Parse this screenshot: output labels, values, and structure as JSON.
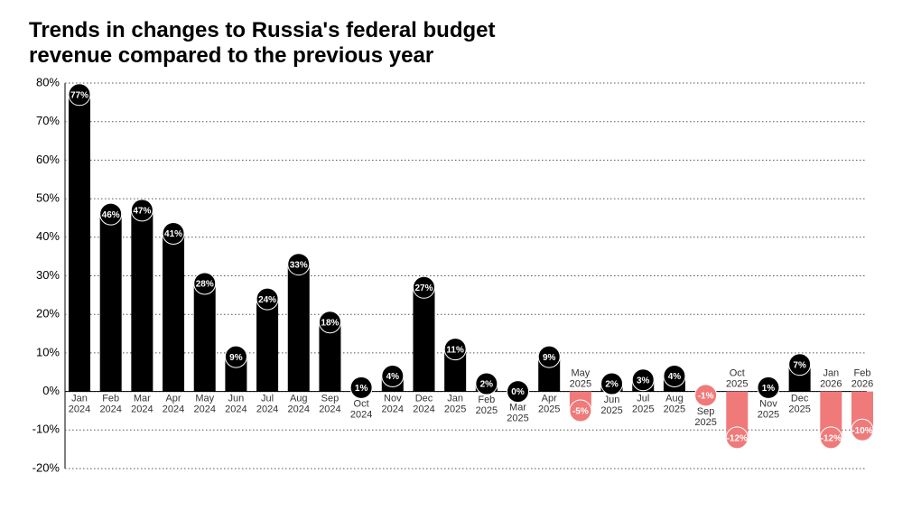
{
  "chart_data": {
    "type": "bar",
    "title": "Trends in changes to Russia's federal budget revenue compared to the previous year",
    "categories": [
      "Jan 2024",
      "Feb 2024",
      "Mar 2024",
      "Apr 2024",
      "May 2024",
      "Jun 2024",
      "Jul 2024",
      "Aug 2024",
      "Sep 2024",
      "Oct 2024",
      "Nov 2024",
      "Dec 2024",
      "Jan 2025",
      "Feb 2025",
      "Mar 2025",
      "Apr 2025",
      "May 2025",
      "Jun 2025",
      "Jul 2025",
      "Aug 2025",
      "Sep 2025",
      "Oct 2025",
      "Nov 2025",
      "Dec 2025",
      "Jan 2026",
      "Feb 2026"
    ],
    "values": [
      77,
      46,
      47,
      41,
      28,
      9,
      24,
      33,
      18,
      1,
      4,
      27,
      11,
      2,
      0,
      9,
      -5,
      2,
      3,
      4,
      -1,
      -12,
      1,
      7,
      -12,
      -10
    ],
    "value_labels": [
      "77%",
      "46%",
      "47%",
      "41%",
      "28%",
      "9%",
      "24%",
      "33%",
      "18%",
      "1%",
      "4%",
      "27%",
      "11%",
      "2%",
      "0%",
      "9%",
      "-5%",
      "2%",
      "3%",
      "4%",
      "-1%",
      "-12%",
      "1%",
      "7%",
      "-12%",
      "-10%"
    ],
    "color": "#000000",
    "negative_color": "#f07a7a",
    "ylim": [
      -20,
      80
    ],
    "yticks": [
      {
        "value": -20,
        "label": "-20%"
      },
      {
        "value": -10,
        "label": "-10%"
      },
      {
        "value": 0,
        "label": "0%"
      },
      {
        "value": 10,
        "label": "10%"
      },
      {
        "value": 20,
        "label": "20%"
      },
      {
        "value": 30,
        "label": "30%"
      },
      {
        "value": 40,
        "label": "40%"
      },
      {
        "value": 50,
        "label": "50%"
      },
      {
        "value": 60,
        "label": "60%"
      },
      {
        "value": 70,
        "label": "70%"
      },
      {
        "value": 80,
        "label": "80%"
      }
    ],
    "grid": true
  }
}
